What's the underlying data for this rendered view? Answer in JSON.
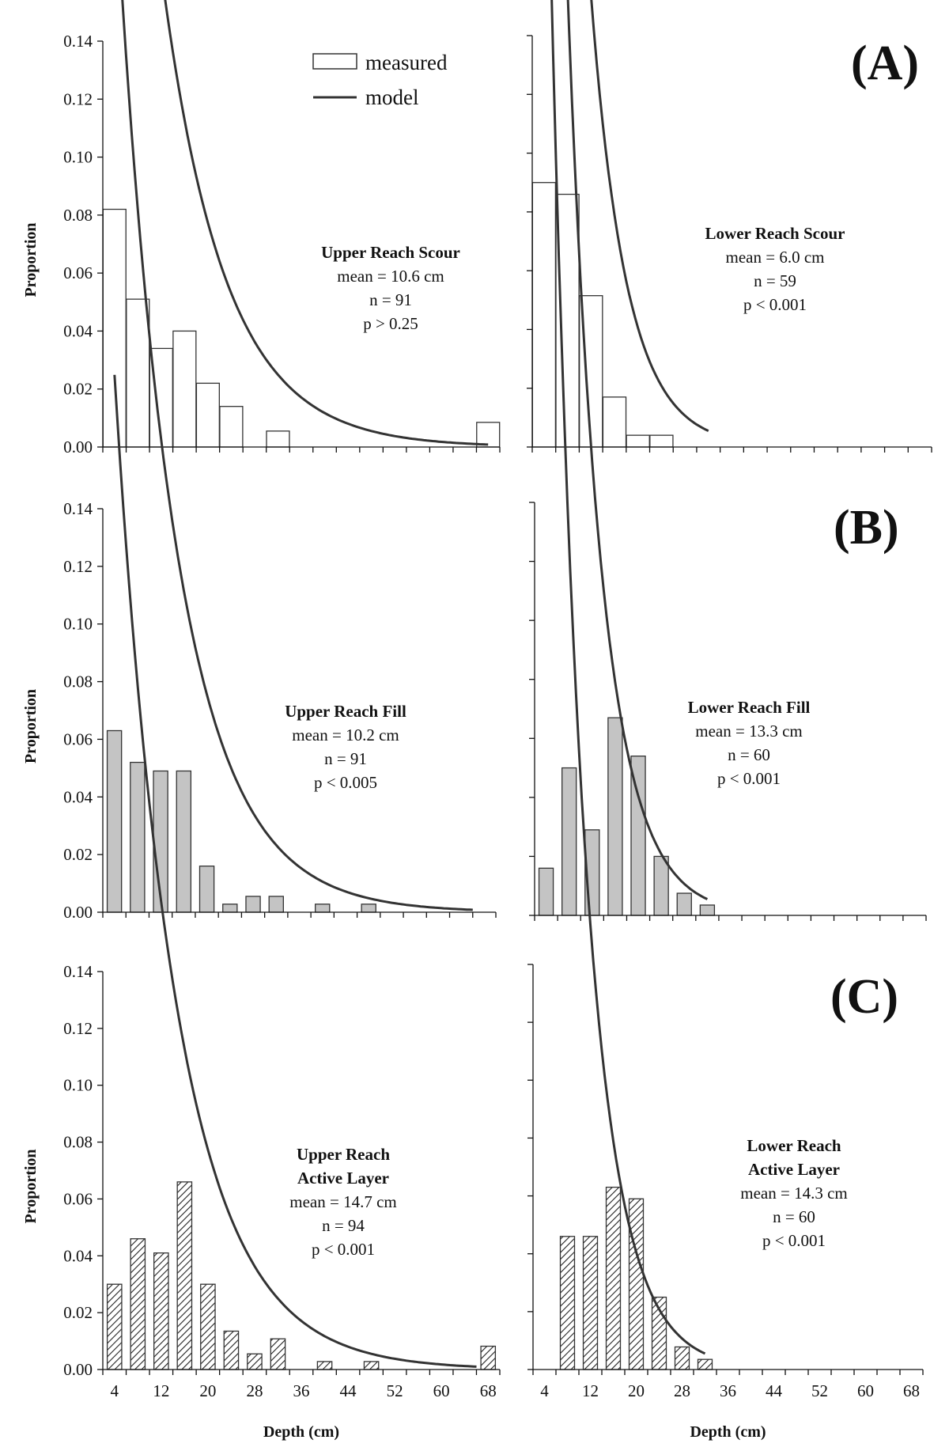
{
  "figure": {
    "legend": {
      "measured": "measured",
      "model": "model"
    },
    "panel_labels": [
      "(A)",
      "(B)",
      "(C)"
    ]
  },
  "colors": {
    "axis": "#111111",
    "model_line": "#333333",
    "scour_fill": "#ffffff",
    "fill_fill": "#c4c4c4",
    "bar_stroke": "#333333"
  },
  "chart_data": [
    {
      "id": "upper-scour",
      "type": "bar",
      "style": "open",
      "ylabel": "Proportion",
      "xlabel": "",
      "ylim": [
        0,
        0.14
      ],
      "yticks": [
        "0.00",
        "0.02",
        "0.04",
        "0.06",
        "0.08",
        "0.10",
        "0.12",
        "0.14"
      ],
      "xticks": [],
      "x": [
        4,
        8,
        12,
        16,
        20,
        24,
        28,
        32,
        36,
        40,
        44,
        48,
        52,
        56,
        60,
        64,
        68
      ],
      "values": [
        0.082,
        0.051,
        0.034,
        0.04,
        0.022,
        0.014,
        0,
        0.0055,
        0,
        0,
        0,
        0,
        0,
        0,
        0,
        0,
        0.0085
      ],
      "model": {
        "mean": 10.6,
        "x0": 4,
        "x1": 68
      },
      "annotation": {
        "title": [
          "Upper Reach Scour"
        ],
        "mean": "mean = 10.6 cm",
        "n": "n = 91",
        "p": "p > 0.25"
      }
    },
    {
      "id": "lower-scour",
      "type": "bar",
      "style": "open",
      "ylabel": "",
      "xlabel": "",
      "ylim": [
        0,
        0.14
      ],
      "yticks": [],
      "xticks": [],
      "x": [
        4,
        8,
        12,
        16,
        20,
        24,
        28,
        32,
        36,
        40,
        44,
        48,
        52,
        56,
        60,
        64,
        68
      ],
      "values": [
        0.09,
        0.086,
        0.0515,
        0.017,
        0.004,
        0.004,
        0,
        0,
        0,
        0,
        0,
        0,
        0,
        0,
        0,
        0,
        0
      ],
      "model": {
        "mean": 6.0,
        "x0": 3,
        "x1": 32
      },
      "annotation": {
        "title": [
          "Lower Reach Scour"
        ],
        "mean": "mean = 6.0 cm",
        "n": "n = 59",
        "p": "p < 0.001"
      }
    },
    {
      "id": "upper-fill",
      "type": "bar",
      "style": "gray",
      "ylabel": "Proportion",
      "xlabel": "",
      "ylim": [
        0,
        0.14
      ],
      "yticks": [
        "0.00",
        "0.02",
        "0.04",
        "0.06",
        "0.08",
        "0.10",
        "0.12",
        "0.14"
      ],
      "xticks": [],
      "x": [
        4,
        8,
        12,
        16,
        20,
        24,
        28,
        32,
        36,
        40,
        44,
        48,
        52,
        56,
        60,
        64,
        68
      ],
      "values": [
        0.063,
        0.052,
        0.049,
        0.049,
        0.016,
        0.0028,
        0.0055,
        0.0055,
        0,
        0.0028,
        0,
        0.0028,
        0,
        0,
        0,
        0,
        0
      ],
      "model": {
        "mean": 10.2,
        "x0": 4,
        "x1": 66
      },
      "annotation": {
        "title": [
          "Upper Reach Fill"
        ],
        "mean": "mean = 10.2 cm",
        "n": "n = 91",
        "p": "p < 0.005"
      }
    },
    {
      "id": "lower-fill",
      "type": "bar",
      "style": "gray",
      "ylabel": "",
      "xlabel": "",
      "ylim": [
        0,
        0.14
      ],
      "yticks": [],
      "xticks": [],
      "x": [
        4,
        8,
        12,
        16,
        20,
        24,
        28,
        32,
        36,
        40,
        44,
        48,
        52,
        56,
        60,
        64,
        68
      ],
      "values": [
        0.016,
        0.05,
        0.029,
        0.067,
        0.054,
        0.02,
        0.0075,
        0.0035,
        0,
        0,
        0,
        0,
        0,
        0,
        0,
        0,
        0
      ],
      "model": {
        "mean": 6.0,
        "x0": 4,
        "x1": 32
      },
      "annotation": {
        "title": [
          "Lower Reach Fill"
        ],
        "mean": "mean = 13.3 cm",
        "n": "n = 60",
        "p": "p < 0.001"
      }
    },
    {
      "id": "upper-active",
      "type": "bar",
      "style": "hatch",
      "ylabel": "Proportion",
      "xlabel": "Depth (cm)",
      "ylim": [
        0,
        0.14
      ],
      "yticks": [
        "0.00",
        "0.02",
        "0.04",
        "0.06",
        "0.08",
        "0.10",
        "0.12",
        "0.14"
      ],
      "xticks": [
        "4",
        "12",
        "20",
        "28",
        "36",
        "44",
        "52",
        "60",
        "68"
      ],
      "x": [
        4,
        8,
        12,
        16,
        20,
        24,
        28,
        32,
        36,
        40,
        44,
        48,
        52,
        56,
        60,
        64,
        68
      ],
      "values": [
        0.03,
        0.046,
        0.041,
        0.066,
        0.03,
        0.0135,
        0.0055,
        0.0108,
        0,
        0.0028,
        0,
        0.0028,
        0,
        0,
        0,
        0,
        0.0082
      ],
      "model": {
        "mean": 10.6,
        "x0": 4,
        "x1": 66
      },
      "annotation": {
        "title": [
          "Upper Reach",
          "Active Layer"
        ],
        "mean": "mean = 14.7 cm",
        "n": "n = 94",
        "p": "p < 0.001"
      }
    },
    {
      "id": "lower-active",
      "type": "bar",
      "style": "hatch",
      "ylabel": "",
      "xlabel": "Depth (cm)",
      "ylim": [
        0,
        0.14
      ],
      "yticks": [],
      "xticks": [
        "4",
        "12",
        "20",
        "28",
        "36",
        "44",
        "52",
        "60",
        "68"
      ],
      "x": [
        4,
        8,
        12,
        16,
        20,
        24,
        28,
        32,
        36,
        40,
        44,
        48,
        52,
        56,
        60,
        64,
        68
      ],
      "values": [
        0,
        0.046,
        0.046,
        0.063,
        0.059,
        0.025,
        0.0078,
        0.0035,
        0,
        0,
        0,
        0,
        0,
        0,
        0,
        0,
        0
      ],
      "model": {
        "mean": 6.0,
        "x0": 4,
        "x1": 32
      },
      "annotation": {
        "title": [
          "Lower Reach",
          "Active Layer"
        ],
        "mean": "mean = 14.3 cm",
        "n": "n = 60",
        "p": "p < 0.001"
      }
    }
  ]
}
